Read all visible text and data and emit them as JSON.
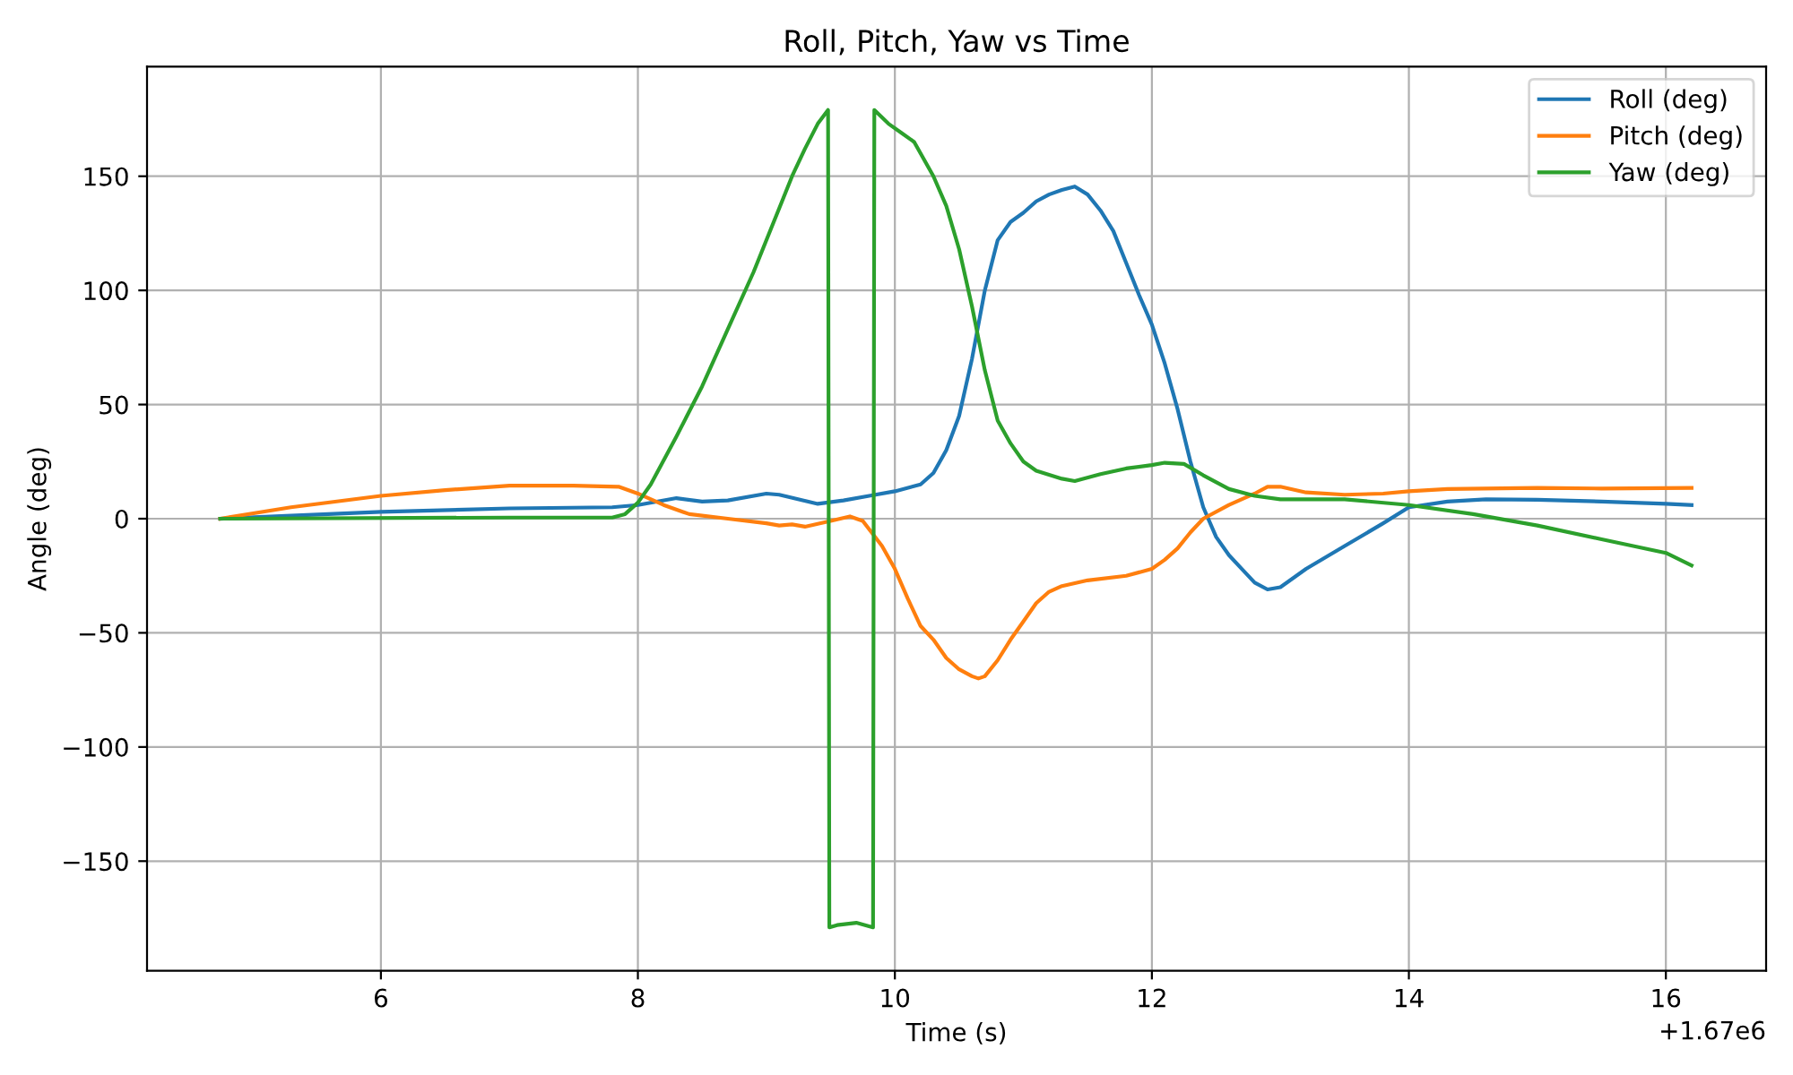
{
  "chart_data": {
    "type": "line",
    "title": "Roll, Pitch, Yaw vs Time",
    "xlabel": "Time (s)",
    "ylabel": "Angle (deg)",
    "annotations": [
      "+1.67e6"
    ],
    "xlim": [
      4.18,
      16.78
    ],
    "ylim": [
      -198,
      198
    ],
    "xticks": [
      6,
      8,
      10,
      12,
      14,
      16
    ],
    "yticks": [
      {
        "value": -150,
        "label": "−150"
      },
      {
        "value": -100,
        "label": "−100"
      },
      {
        "value": -50,
        "label": "−50"
      },
      0,
      50,
      100,
      150
    ],
    "grid": true,
    "legend": "top right",
    "line_style": "solid",
    "marker": "none",
    "series": [
      {
        "name": "Roll (deg)",
        "color": "#1f77b4",
        "x": [
          4.75,
          6,
          7,
          7.8,
          8,
          8.3,
          8.5,
          8.7,
          9,
          9.1,
          9.4,
          9.6,
          9.8,
          10,
          10.2,
          10.3,
          10.4,
          10.5,
          10.6,
          10.7,
          10.8,
          10.9,
          11,
          11.1,
          11.2,
          11.3,
          11.4,
          11.5,
          11.6,
          11.7,
          11.8,
          11.9,
          12,
          12.1,
          12.2,
          12.3,
          12.4,
          12.5,
          12.6,
          12.7,
          12.8,
          12.9,
          13,
          13.2,
          13.5,
          13.8,
          14,
          14.3,
          14.6,
          15,
          15.5,
          16,
          16.2
        ],
        "values": [
          0,
          3,
          4.5,
          5,
          6,
          9,
          7.5,
          8,
          11,
          10.5,
          6.5,
          8,
          10,
          12,
          15,
          20,
          30,
          45,
          70,
          100,
          122,
          130,
          134,
          139,
          142,
          144,
          145.5,
          142,
          135,
          126,
          112,
          98,
          85,
          68,
          48,
          25,
          5,
          -8,
          -16,
          -22,
          -28,
          -31,
          -30,
          -22,
          -12,
          -2,
          5,
          7.5,
          8.5,
          8.3,
          7.5,
          6.5,
          6
        ]
      },
      {
        "name": "Pitch (deg)",
        "color": "#ff7f0e",
        "x": [
          4.75,
          5.3,
          6,
          6.5,
          7,
          7.5,
          7.85,
          8,
          8.2,
          8.4,
          8.7,
          9,
          9.1,
          9.2,
          9.3,
          9.5,
          9.65,
          9.75,
          9.9,
          10,
          10.1,
          10.2,
          10.3,
          10.4,
          10.5,
          10.6,
          10.65,
          10.7,
          10.8,
          10.9,
          11,
          11.1,
          11.2,
          11.3,
          11.5,
          11.8,
          12,
          12.1,
          12.2,
          12.3,
          12.4,
          12.6,
          12.8,
          12.9,
          13,
          13.2,
          13.5,
          13.8,
          14,
          14.3,
          15,
          15.5,
          16.2
        ],
        "values": [
          0,
          5,
          10,
          12.5,
          14.5,
          14.5,
          14,
          11,
          6,
          2,
          0,
          -2,
          -3,
          -2.5,
          -3.5,
          -1,
          1,
          -1,
          -12,
          -22,
          -35,
          -47,
          -53,
          -61,
          -66,
          -69,
          -70,
          -69,
          -62,
          -53,
          -45,
          -37,
          -32,
          -29.5,
          -27,
          -25,
          -22,
          -18,
          -13,
          -6,
          0,
          6,
          11,
          14,
          14,
          11.5,
          10.5,
          11,
          12,
          13,
          13.5,
          13.2,
          13.5
        ]
      },
      {
        "name": "Yaw (deg)",
        "color": "#2ca02c",
        "x": [
          4.75,
          7,
          7.8,
          7.9,
          8,
          8.1,
          8.3,
          8.5,
          8.7,
          8.9,
          9.1,
          9.2,
          9.3,
          9.4,
          9.48,
          9.49,
          9.55,
          9.7,
          9.83,
          9.84,
          9.95,
          10.05,
          10.15,
          10.3,
          10.4,
          10.5,
          10.6,
          10.7,
          10.8,
          10.9,
          11,
          11.1,
          11.3,
          11.4,
          11.6,
          11.8,
          12,
          12.1,
          12.25,
          12.4,
          12.6,
          12.8,
          13,
          13.5,
          14,
          14.5,
          15,
          15.5,
          16,
          16.2
        ],
        "values": [
          0,
          0.5,
          0.5,
          2,
          7,
          15,
          36,
          58,
          83,
          108,
          136,
          150,
          162,
          173,
          179,
          -179,
          -178,
          -177,
          -179,
          179,
          173,
          169,
          165,
          150,
          137,
          118,
          93,
          65,
          43,
          33,
          25,
          21,
          17.5,
          16.5,
          19.5,
          22,
          23.5,
          24.5,
          24,
          19,
          13,
          10,
          8.5,
          8.5,
          6,
          2,
          -3,
          -9,
          -15,
          -20.5
        ]
      }
    ]
  }
}
